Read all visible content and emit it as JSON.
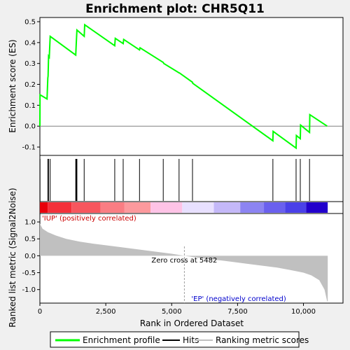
{
  "chart_data": {
    "type": "line",
    "title": "Enrichment plot: CHR5Q11",
    "top_panel": {
      "ylabel": "Enrichment score (ES)",
      "ylim": [
        -0.14,
        0.52
      ],
      "yticks": [
        -0.1,
        0.0,
        0.1,
        0.2,
        0.3,
        0.4,
        0.5
      ],
      "ytick_labels": [
        "-0.1",
        "0.0",
        "0.1",
        "0.2",
        "0.3",
        "0.4",
        "0.5"
      ],
      "series": [
        {
          "name": "Enrichment profile",
          "color": "#00ff00",
          "x": [
            0,
            5,
            270,
            300,
            310,
            330,
            355,
            390,
            1360,
            1380,
            1405,
            1680,
            1700,
            2840,
            2860,
            3160,
            3180,
            3780,
            3800,
            4680,
            4700,
            5280,
            5290,
            5790,
            5800,
            8840,
            8850,
            9720,
            9730,
            9880,
            9890,
            10230,
            10240,
            10900
          ],
          "y": [
            0.0,
            0.15,
            0.13,
            0.23,
            0.24,
            0.335,
            0.33,
            0.43,
            0.34,
            0.4,
            0.46,
            0.43,
            0.485,
            0.385,
            0.42,
            0.395,
            0.415,
            0.365,
            0.375,
            0.305,
            0.3,
            0.255,
            0.255,
            0.21,
            0.205,
            -0.07,
            -0.025,
            -0.105,
            -0.045,
            -0.06,
            0.005,
            -0.03,
            0.055,
            0.0
          ]
        }
      ],
      "hits": [
        5,
        300,
        330,
        390,
        1360,
        1380,
        1405,
        1680,
        2840,
        3160,
        3780,
        4680,
        5280,
        5790,
        8840,
        9720,
        9880,
        10230
      ]
    },
    "bottom_panel": {
      "ylabel": "Ranked list metric (Signal2Noise)",
      "xlabel": "Rank in Ordered Dataset",
      "xlim": [
        0,
        11500
      ],
      "ylim": [
        -1.4,
        1.25
      ],
      "xticks": [
        0,
        2500,
        5000,
        7500,
        10000
      ],
      "xtick_labels": [
        "0",
        "2,500",
        "5,000",
        "7,500",
        "10,000"
      ],
      "yticks": [
        -1.0,
        -0.5,
        0.0,
        0.5,
        1.0
      ],
      "ytick_labels": [
        "-1.0",
        "-0.5",
        "0.0",
        "0.5",
        "1.0"
      ],
      "metric": {
        "x": [
          0,
          100,
          300,
          600,
          1000,
          1500,
          2000,
          3000,
          4000,
          5000,
          5482,
          6000,
          7000,
          8000,
          9000,
          9500,
          10000,
          10300,
          10600,
          10800,
          10900,
          10920
        ],
        "y": [
          0.95,
          0.8,
          0.7,
          0.6,
          0.5,
          0.42,
          0.36,
          0.26,
          0.16,
          0.06,
          0.0,
          -0.06,
          -0.15,
          -0.25,
          -0.35,
          -0.42,
          -0.5,
          -0.58,
          -0.72,
          -1.0,
          -1.35,
          -1.35
        ]
      },
      "zero_cross_label": "Zero cross at 5482",
      "zero_cross": 5482,
      "pos_label": "'IUP' (positively correlated)",
      "neg_label": "'EP' (negatively correlated)",
      "pos_color": "#cc0000",
      "neg_color": "#0000cc"
    },
    "heat_bar": {
      "segments": [
        {
          "from": 0,
          "to": 300,
          "color": "#e8000b"
        },
        {
          "from": 300,
          "to": 1200,
          "color": "#f4303a"
        },
        {
          "from": 1200,
          "to": 2300,
          "color": "#f7565e"
        },
        {
          "from": 2300,
          "to": 3200,
          "color": "#fa7d83"
        },
        {
          "from": 3200,
          "to": 4200,
          "color": "#fc999d"
        },
        {
          "from": 4200,
          "to": 5400,
          "color": "#fec3e6"
        },
        {
          "from": 5400,
          "to": 6600,
          "color": "#e8e0ff"
        },
        {
          "from": 6600,
          "to": 7600,
          "color": "#c4b8f8"
        },
        {
          "from": 7600,
          "to": 8500,
          "color": "#8c84f2"
        },
        {
          "from": 8500,
          "to": 9300,
          "color": "#6a60ee"
        },
        {
          "from": 9300,
          "to": 10100,
          "color": "#4a40e8"
        },
        {
          "from": 10100,
          "to": 10920,
          "color": "#2200cc"
        }
      ]
    },
    "legend": [
      {
        "label": "Enrichment profile",
        "color": "#00ff00"
      },
      {
        "label": "Hits",
        "color": "#000000"
      },
      {
        "label": "Ranking metric scores",
        "color": "#c0c0c0"
      }
    ]
  }
}
